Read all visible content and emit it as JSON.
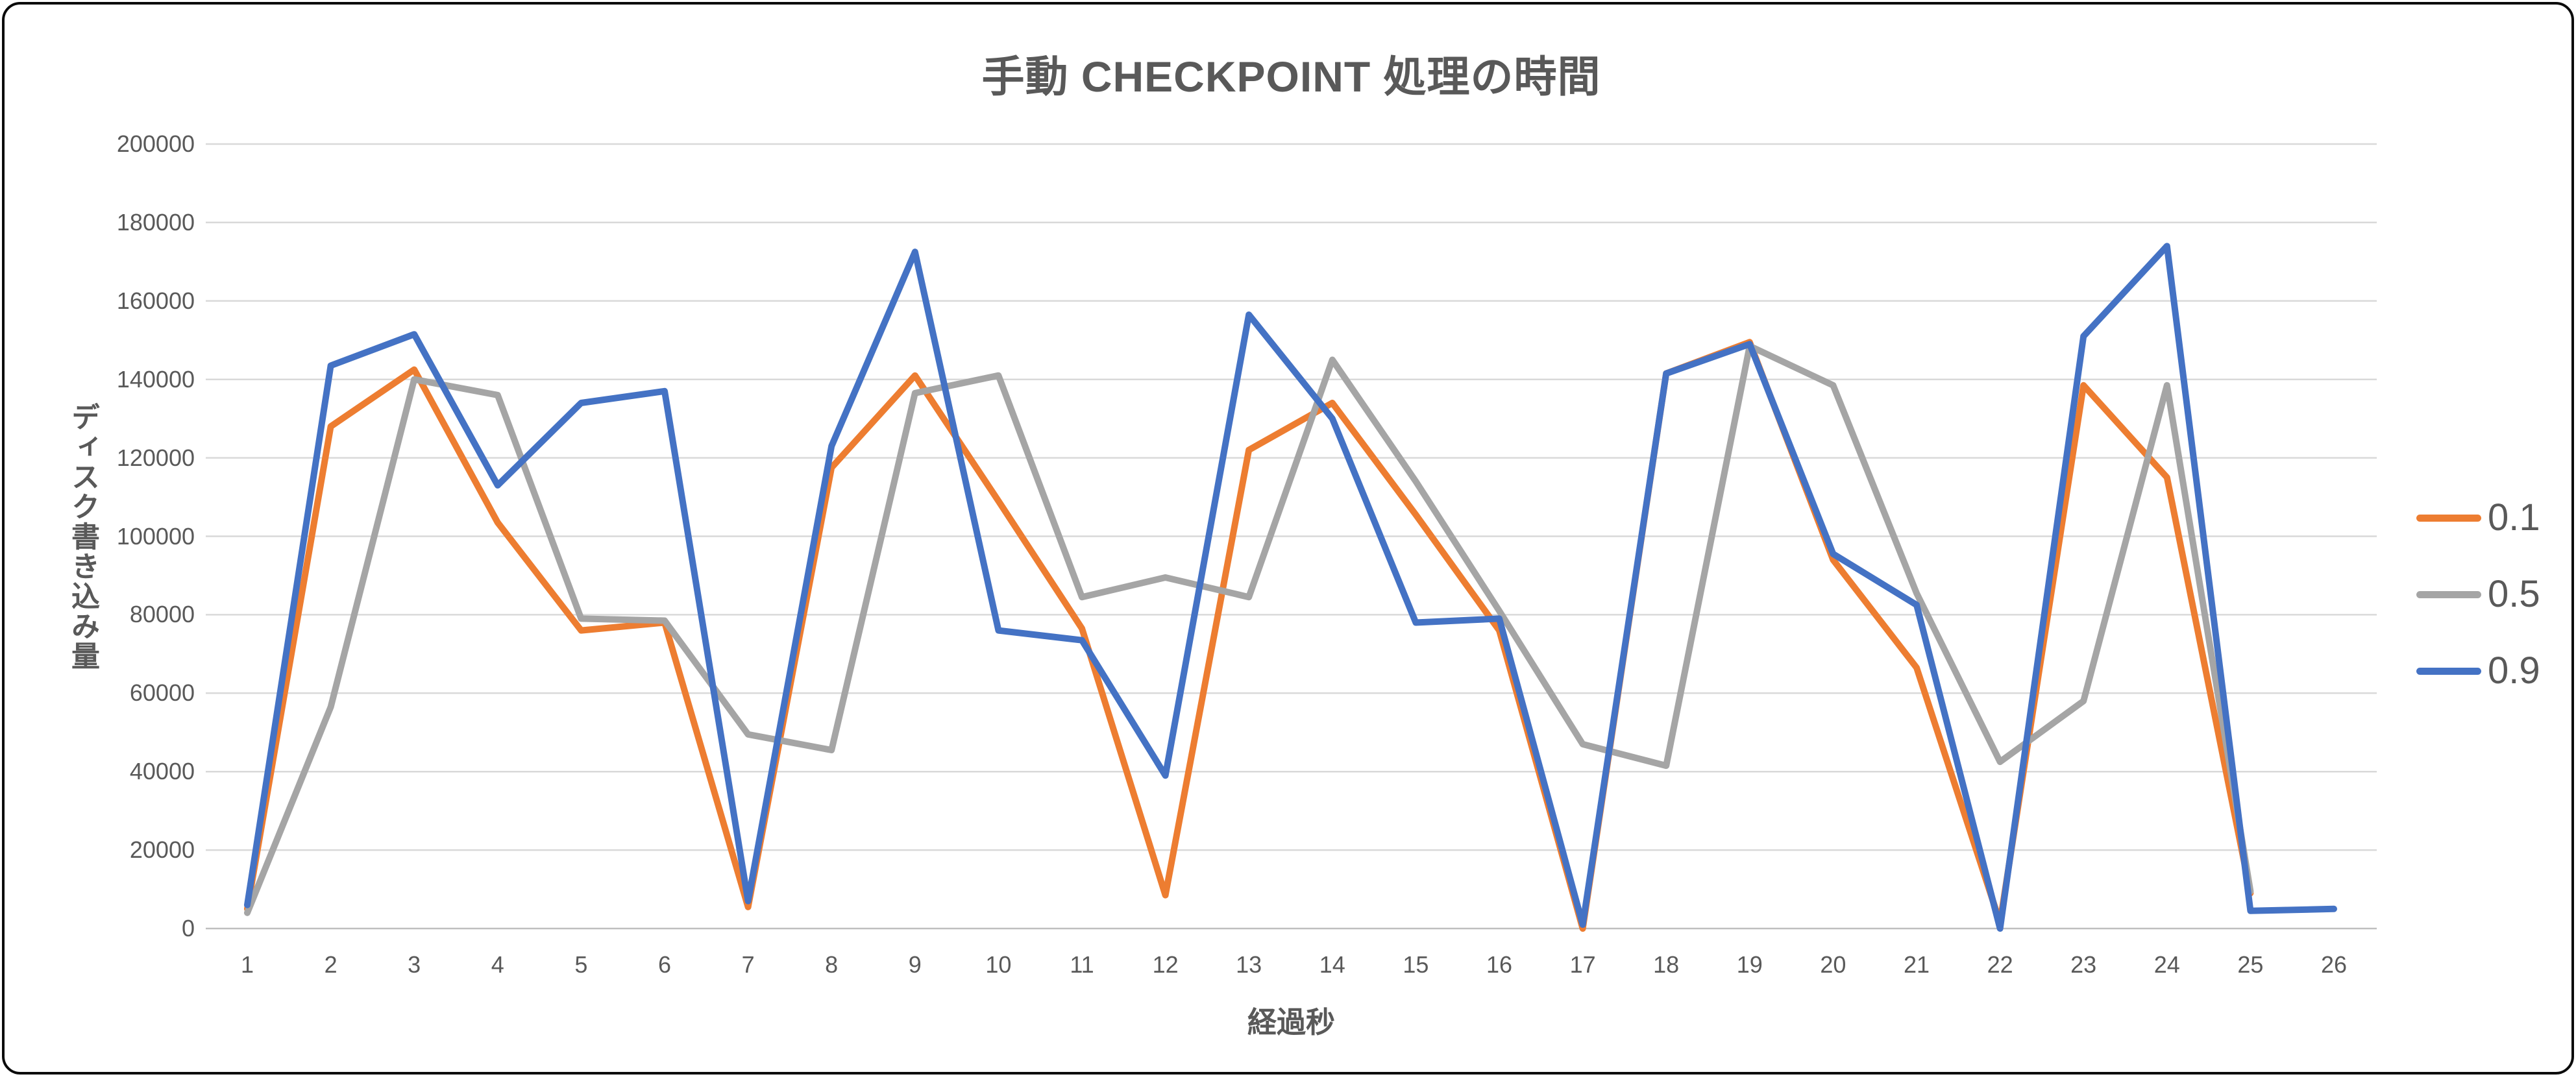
{
  "chart_data": {
    "type": "line",
    "title": "手動 CHECKPOINT 処理の時間",
    "xlabel": "経過秒",
    "ylabel": "ディスク書き込み量",
    "categories": [
      "1",
      "2",
      "3",
      "4",
      "5",
      "6",
      "7",
      "8",
      "9",
      "10",
      "11",
      "12",
      "13",
      "14",
      "15",
      "16",
      "17",
      "18",
      "19",
      "20",
      "21",
      "22",
      "23",
      "24",
      "25",
      "26"
    ],
    "y_ticks": [
      "0",
      "20000",
      "40000",
      "60000",
      "80000",
      "100000",
      "120000",
      "140000",
      "160000",
      "180000",
      "200000"
    ],
    "ylim": [
      0,
      200000
    ],
    "grid": true,
    "legend_position": "right",
    "series": [
      {
        "name": "0.1",
        "color": "#ED7D31",
        "values": [
          5000,
          128000,
          142500,
          103500,
          76000,
          78000,
          5500,
          117500,
          141000,
          109000,
          76500,
          8500,
          122000,
          134000,
          105500,
          76000,
          0,
          141500,
          149500,
          94000,
          66500,
          1500,
          138500,
          115000,
          9000,
          null
        ]
      },
      {
        "name": "0.5",
        "color": "#A5A5A5",
        "values": [
          4000,
          56500,
          140000,
          136000,
          79000,
          78500,
          49500,
          45500,
          136500,
          141000,
          84500,
          89500,
          84500,
          145000,
          114000,
          81000,
          47000,
          41500,
          148500,
          138500,
          85500,
          42500,
          58000,
          138500,
          9500,
          null
        ]
      },
      {
        "name": "0.9",
        "color": "#4472C4",
        "values": [
          6000,
          143500,
          151500,
          113000,
          134000,
          137000,
          7000,
          123000,
          172500,
          76000,
          73500,
          39000,
          156500,
          130000,
          78000,
          79000,
          1000,
          141500,
          149000,
          95500,
          82500,
          0,
          151000,
          174000,
          4500,
          5000
        ]
      }
    ],
    "gridline_color": "#D9D9D9",
    "axis_line_color": "#BFBFBF",
    "text_color": "#595959"
  }
}
